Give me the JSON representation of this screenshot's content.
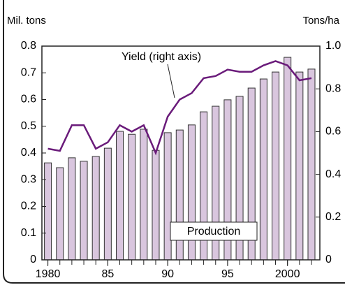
{
  "chart_data": {
    "type": "bar-line",
    "y_label": "Mil. tons",
    "y2_label": "Tons/ha",
    "annotations": [
      "Yield (right axis)",
      "Production"
    ],
    "x": [
      1980,
      1981,
      1982,
      1983,
      1984,
      1985,
      1986,
      1987,
      1988,
      1989,
      1990,
      1991,
      1992,
      1993,
      1994,
      1995,
      1996,
      1997,
      1998,
      1999,
      2000,
      2001,
      2002
    ],
    "series": [
      {
        "name": "Production",
        "type": "bar",
        "color": "#d9c6de",
        "values": [
          0.363,
          0.345,
          0.382,
          0.369,
          0.387,
          0.418,
          0.481,
          0.47,
          0.489,
          0.41,
          0.476,
          0.486,
          0.505,
          0.554,
          0.575,
          0.599,
          0.612,
          0.643,
          0.677,
          0.703,
          0.758,
          0.703,
          0.714
        ]
      },
      {
        "name": "Yield",
        "type": "line",
        "axis": "y2",
        "color": "#6a1b7a",
        "values": [
          0.52,
          0.51,
          0.63,
          0.63,
          0.52,
          0.55,
          0.63,
          0.6,
          0.63,
          0.5,
          0.67,
          0.75,
          0.78,
          0.85,
          0.86,
          0.89,
          0.88,
          0.88,
          0.91,
          0.93,
          0.91,
          0.84,
          0.85
        ]
      }
    ],
    "xlim": [
      1979.5,
      2002.7
    ],
    "xticks": [
      1980,
      {
        "value": 1985,
        "label": "85"
      },
      {
        "value": 1990,
        "label": "90"
      },
      {
        "value": 1995,
        "label": "95"
      },
      2000
    ],
    "ylim": [
      0,
      0.8
    ],
    "yticks": [
      0,
      0.1,
      0.2,
      0.3,
      0.4,
      0.5,
      0.6,
      0.7,
      0.8
    ],
    "y2lim": [
      0,
      1
    ],
    "y2ticks": [
      0,
      0.2,
      0.4,
      0.6,
      0.8,
      {
        "value": 1,
        "label": "1.0"
      }
    ]
  }
}
